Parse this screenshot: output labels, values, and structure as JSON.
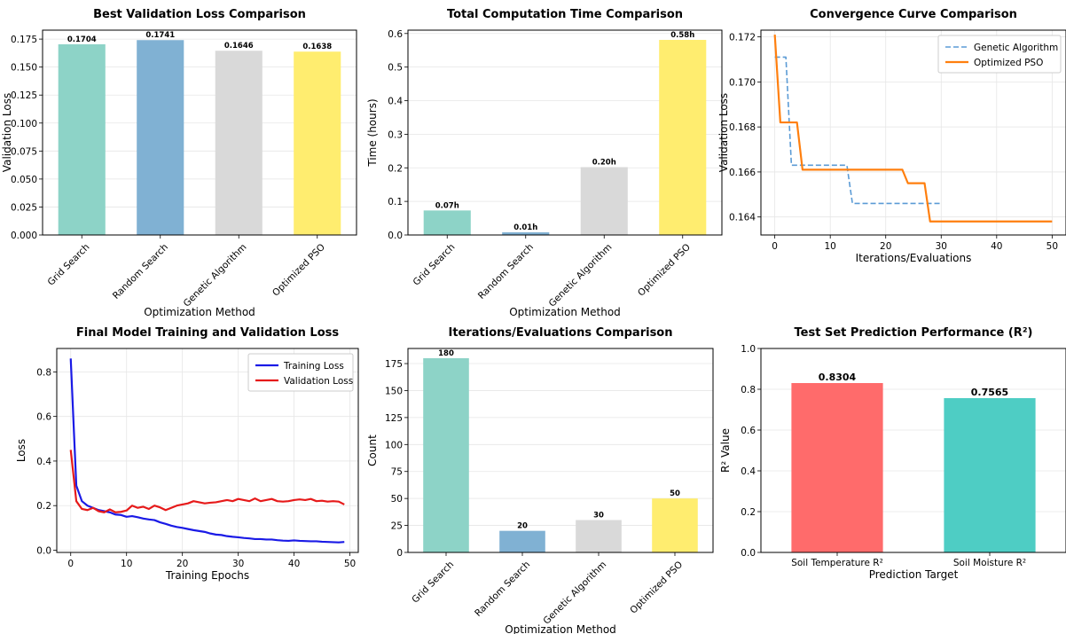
{
  "chart_data": [
    {
      "type": "bar",
      "title": "Best Validation Loss Comparison",
      "xlabel": "Optimization Method",
      "ylabel": "Validation Loss",
      "categories": [
        "Grid Search",
        "Random Search",
        "Genetic Algorithm",
        "Optimized PSO"
      ],
      "values": [
        0.1704,
        0.1741,
        0.1646,
        0.1638
      ],
      "value_labels": [
        "0.1704",
        "0.1741",
        "0.1646",
        "0.1638"
      ],
      "colors": [
        "#8dd3c7",
        "#80b1d3",
        "#d9d9d9",
        "#ffed6f"
      ],
      "ylim": [
        0,
        0.183
      ],
      "yticks": [
        0,
        0.025,
        0.05,
        0.075,
        0.1,
        0.125,
        0.15,
        0.175
      ],
      "ytick_labels": [
        "0.000",
        "0.025",
        "0.050",
        "0.075",
        "0.100",
        "0.125",
        "0.150",
        "0.175"
      ],
      "grid": true
    },
    {
      "type": "bar",
      "title": "Total Computation Time Comparison",
      "xlabel": "Optimization Method",
      "ylabel": "Time (hours)",
      "categories": [
        "Grid Search",
        "Random Search",
        "Genetic Algorithm",
        "Optimized PSO"
      ],
      "values": [
        0.073,
        0.008,
        0.202,
        0.581
      ],
      "value_labels": [
        "0.07h",
        "0.01h",
        "0.20h",
        "0.58h"
      ],
      "colors": [
        "#8dd3c7",
        "#80b1d3",
        "#d9d9d9",
        "#ffed6f"
      ],
      "ylim": [
        0,
        0.61
      ],
      "yticks": [
        0,
        0.1,
        0.2,
        0.3,
        0.4,
        0.5,
        0.6
      ],
      "ytick_labels": [
        "0.0",
        "0.1",
        "0.2",
        "0.3",
        "0.4",
        "0.5",
        "0.6"
      ],
      "grid": true
    },
    {
      "type": "line",
      "title": "Convergence Curve Comparison",
      "xlabel": "Iterations/Evaluations",
      "ylabel": "Validation Loss",
      "xlim": [
        -2.5,
        52.5
      ],
      "ylim": [
        0.1632,
        0.1723
      ],
      "xticks": [
        0,
        10,
        20,
        30,
        40,
        50
      ],
      "xtick_labels": [
        "0",
        "10",
        "20",
        "30",
        "40",
        "50"
      ],
      "yticks": [
        0.164,
        0.166,
        0.168,
        0.17,
        0.172
      ],
      "ytick_labels": [
        "0.164",
        "0.166",
        "0.168",
        "0.170",
        "0.172"
      ],
      "legend": "top-right",
      "grid": true,
      "series": [
        {
          "name": "Genetic Algorithm",
          "color": "#5b9bd5",
          "dashed": true,
          "x": [
            0,
            1,
            2,
            3,
            4,
            5,
            6,
            7,
            8,
            9,
            10,
            11,
            12,
            13,
            14,
            15,
            16,
            17,
            18,
            19,
            20,
            21,
            22,
            23,
            24,
            25,
            26,
            27,
            28,
            29,
            30
          ],
          "y": [
            0.1711,
            0.1711,
            0.1711,
            0.1663,
            0.1663,
            0.1663,
            0.1663,
            0.1663,
            0.1663,
            0.1663,
            0.1663,
            0.1663,
            0.1663,
            0.1663,
            0.1646,
            0.1646,
            0.1646,
            0.1646,
            0.1646,
            0.1646,
            0.1646,
            0.1646,
            0.1646,
            0.1646,
            0.1646,
            0.1646,
            0.1646,
            0.1646,
            0.1646,
            0.1646,
            0.1646
          ]
        },
        {
          "name": "Optimized PSO",
          "color": "#ff7f0e",
          "dashed": false,
          "x": [
            0,
            1,
            2,
            3,
            4,
            5,
            6,
            7,
            8,
            9,
            10,
            11,
            12,
            13,
            14,
            15,
            16,
            17,
            18,
            19,
            20,
            21,
            22,
            23,
            24,
            25,
            26,
            27,
            28,
            29,
            30,
            31,
            32,
            33,
            34,
            35,
            36,
            37,
            38,
            39,
            40,
            41,
            42,
            43,
            44,
            45,
            46,
            47,
            48,
            49,
            50
          ],
          "y": [
            0.1721,
            0.1682,
            0.1682,
            0.1682,
            0.1682,
            0.1661,
            0.1661,
            0.1661,
            0.1661,
            0.1661,
            0.1661,
            0.1661,
            0.1661,
            0.1661,
            0.1661,
            0.1661,
            0.1661,
            0.1661,
            0.1661,
            0.1661,
            0.1661,
            0.1661,
            0.1661,
            0.1661,
            0.1655,
            0.1655,
            0.1655,
            0.1655,
            0.1638,
            0.1638,
            0.1638,
            0.1638,
            0.1638,
            0.1638,
            0.1638,
            0.1638,
            0.1638,
            0.1638,
            0.1638,
            0.1638,
            0.1638,
            0.1638,
            0.1638,
            0.1638,
            0.1638,
            0.1638,
            0.1638,
            0.1638,
            0.1638,
            0.1638,
            0.1638
          ]
        }
      ]
    },
    {
      "type": "line",
      "title": "Final Model Training and Validation Loss",
      "xlabel": "Training Epochs",
      "ylabel": "Loss",
      "xlim": [
        -2.5,
        51.5
      ],
      "ylim": [
        -0.01,
        0.905
      ],
      "xticks": [
        0,
        10,
        20,
        30,
        40,
        50
      ],
      "xtick_labels": [
        "0",
        "10",
        "20",
        "30",
        "40",
        "50"
      ],
      "yticks": [
        0,
        0.2,
        0.4,
        0.6,
        0.8
      ],
      "ytick_labels": [
        "0.0",
        "0.2",
        "0.4",
        "0.6",
        "0.8"
      ],
      "legend": "top-right",
      "grid": true,
      "series": [
        {
          "name": "Training Loss",
          "color": "#1a1ae6",
          "dashed": false,
          "x": [
            0,
            1,
            2,
            3,
            4,
            5,
            6,
            7,
            8,
            9,
            10,
            11,
            12,
            13,
            14,
            15,
            16,
            17,
            18,
            19,
            20,
            21,
            22,
            23,
            24,
            25,
            26,
            27,
            28,
            29,
            30,
            31,
            32,
            33,
            34,
            35,
            36,
            37,
            38,
            39,
            40,
            41,
            42,
            43,
            44,
            45,
            46,
            47,
            48,
            49
          ],
          "y": [
            0.86,
            0.29,
            0.22,
            0.2,
            0.19,
            0.18,
            0.175,
            0.17,
            0.16,
            0.158,
            0.15,
            0.153,
            0.148,
            0.142,
            0.138,
            0.135,
            0.125,
            0.118,
            0.11,
            0.104,
            0.1,
            0.095,
            0.09,
            0.086,
            0.082,
            0.075,
            0.07,
            0.068,
            0.063,
            0.06,
            0.058,
            0.055,
            0.053,
            0.05,
            0.05,
            0.048,
            0.048,
            0.045,
            0.043,
            0.042,
            0.044,
            0.042,
            0.041,
            0.04,
            0.04,
            0.038,
            0.037,
            0.036,
            0.035,
            0.037
          ]
        },
        {
          "name": "Validation Loss",
          "color": "#e61a1a",
          "dashed": false,
          "x": [
            0,
            1,
            2,
            3,
            4,
            5,
            6,
            7,
            8,
            9,
            10,
            11,
            12,
            13,
            14,
            15,
            16,
            17,
            18,
            19,
            20,
            21,
            22,
            23,
            24,
            25,
            26,
            27,
            28,
            29,
            30,
            31,
            32,
            33,
            34,
            35,
            36,
            37,
            38,
            39,
            40,
            41,
            42,
            43,
            44,
            45,
            46,
            47,
            48,
            49
          ],
          "y": [
            0.45,
            0.22,
            0.185,
            0.18,
            0.19,
            0.175,
            0.17,
            0.183,
            0.17,
            0.172,
            0.178,
            0.2,
            0.19,
            0.195,
            0.185,
            0.2,
            0.192,
            0.18,
            0.19,
            0.2,
            0.205,
            0.21,
            0.22,
            0.215,
            0.21,
            0.213,
            0.215,
            0.22,
            0.225,
            0.22,
            0.23,
            0.225,
            0.22,
            0.232,
            0.22,
            0.225,
            0.23,
            0.22,
            0.218,
            0.22,
            0.225,
            0.228,
            0.225,
            0.23,
            0.22,
            0.222,
            0.218,
            0.22,
            0.218,
            0.205
          ]
        }
      ]
    },
    {
      "type": "bar",
      "title": "Iterations/Evaluations Comparison",
      "xlabel": "Optimization Method",
      "ylabel": "Count",
      "categories": [
        "Grid Search",
        "Random Search",
        "Genetic Algorithm",
        "Optimized PSO"
      ],
      "values": [
        180,
        20,
        30,
        50
      ],
      "value_labels": [
        "180",
        "20",
        "30",
        "50"
      ],
      "colors": [
        "#8dd3c7",
        "#80b1d3",
        "#d9d9d9",
        "#ffed6f"
      ],
      "ylim": [
        0,
        189
      ],
      "yticks": [
        0,
        25,
        50,
        75,
        100,
        125,
        150,
        175
      ],
      "ytick_labels": [
        "0",
        "25",
        "50",
        "75",
        "100",
        "125",
        "150",
        "175"
      ],
      "grid": true
    },
    {
      "type": "bar",
      "title": "Test Set Prediction Performance (R²)",
      "xlabel": "Prediction Target",
      "ylabel": "R² Value",
      "categories": [
        "Soil Temperature R²",
        "Soil Moisture R²"
      ],
      "values": [
        0.8304,
        0.7565
      ],
      "value_labels": [
        "0.8304",
        "0.7565"
      ],
      "colors": [
        "#ff6b6b",
        "#4ecdc4"
      ],
      "ylim": [
        0,
        1.0
      ],
      "yticks": [
        0,
        0.2,
        0.4,
        0.6,
        0.8,
        1.0
      ],
      "ytick_labels": [
        "0.0",
        "0.2",
        "0.4",
        "0.6",
        "0.8",
        "1.0"
      ],
      "grid": true
    }
  ]
}
